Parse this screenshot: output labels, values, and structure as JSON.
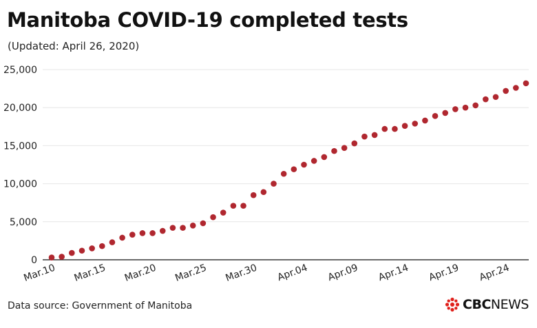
{
  "header": {
    "title": "Manitoba COVID-19 completed tests",
    "subtitle": "(Updated: April 26, 2020)"
  },
  "footer": {
    "source": "Data source: Government of Manitoba",
    "logo_cbc": "CBC",
    "logo_news": "NEWS"
  },
  "colors": {
    "point": "#b0272f",
    "grid": "#e6e6e6",
    "axis": "#111111",
    "logo_red": "#e0201b"
  },
  "chart_data": {
    "type": "scatter",
    "title": "Manitoba COVID-19 completed tests",
    "xlabel": "",
    "ylabel": "",
    "ylim": [
      0,
      25000
    ],
    "yticks": [
      0,
      5000,
      10000,
      15000,
      20000,
      25000
    ],
    "ytick_labels": [
      "0",
      "5,000",
      "10,000",
      "15,000",
      "20,000",
      "25,000"
    ],
    "xtick_labels": [
      "Mar.10",
      "Mar.15",
      "Mar.20",
      "Mar.25",
      "Mar.30",
      "Apr.04",
      "Apr.09",
      "Apr.14",
      "Apr.19",
      "Apr.24"
    ],
    "grid": true,
    "x": [
      "Mar.10",
      "Mar.11",
      "Mar.12",
      "Mar.13",
      "Mar.14",
      "Mar.15",
      "Mar.16",
      "Mar.17",
      "Mar.18",
      "Mar.19",
      "Mar.20",
      "Mar.21",
      "Mar.22",
      "Mar.23",
      "Mar.24",
      "Mar.25",
      "Mar.26",
      "Mar.27",
      "Mar.28",
      "Mar.29",
      "Mar.30",
      "Mar.31",
      "Apr.01",
      "Apr.02",
      "Apr.03",
      "Apr.04",
      "Apr.05",
      "Apr.06",
      "Apr.07",
      "Apr.08",
      "Apr.09",
      "Apr.10",
      "Apr.11",
      "Apr.12",
      "Apr.13",
      "Apr.14",
      "Apr.15",
      "Apr.16",
      "Apr.17",
      "Apr.18",
      "Apr.19",
      "Apr.20",
      "Apr.21",
      "Apr.22",
      "Apr.23",
      "Apr.24",
      "Apr.25",
      "Apr.26"
    ],
    "series": [
      {
        "values": [
          300,
          400,
          900,
          1200,
          1500,
          1800,
          2300,
          2900,
          3300,
          3500,
          3500,
          3800,
          4200,
          4200,
          4500,
          4800,
          5600,
          6200,
          7100,
          7100,
          8500,
          8900,
          10000,
          11300,
          11900,
          12500,
          13000,
          13500,
          14300,
          14700,
          15300,
          16200,
          16400,
          17200,
          17200,
          17600,
          17900,
          18300,
          18900,
          19300,
          19800,
          20000,
          20300,
          21100,
          21400,
          22200,
          22600,
          23200
        ]
      }
    ]
  }
}
